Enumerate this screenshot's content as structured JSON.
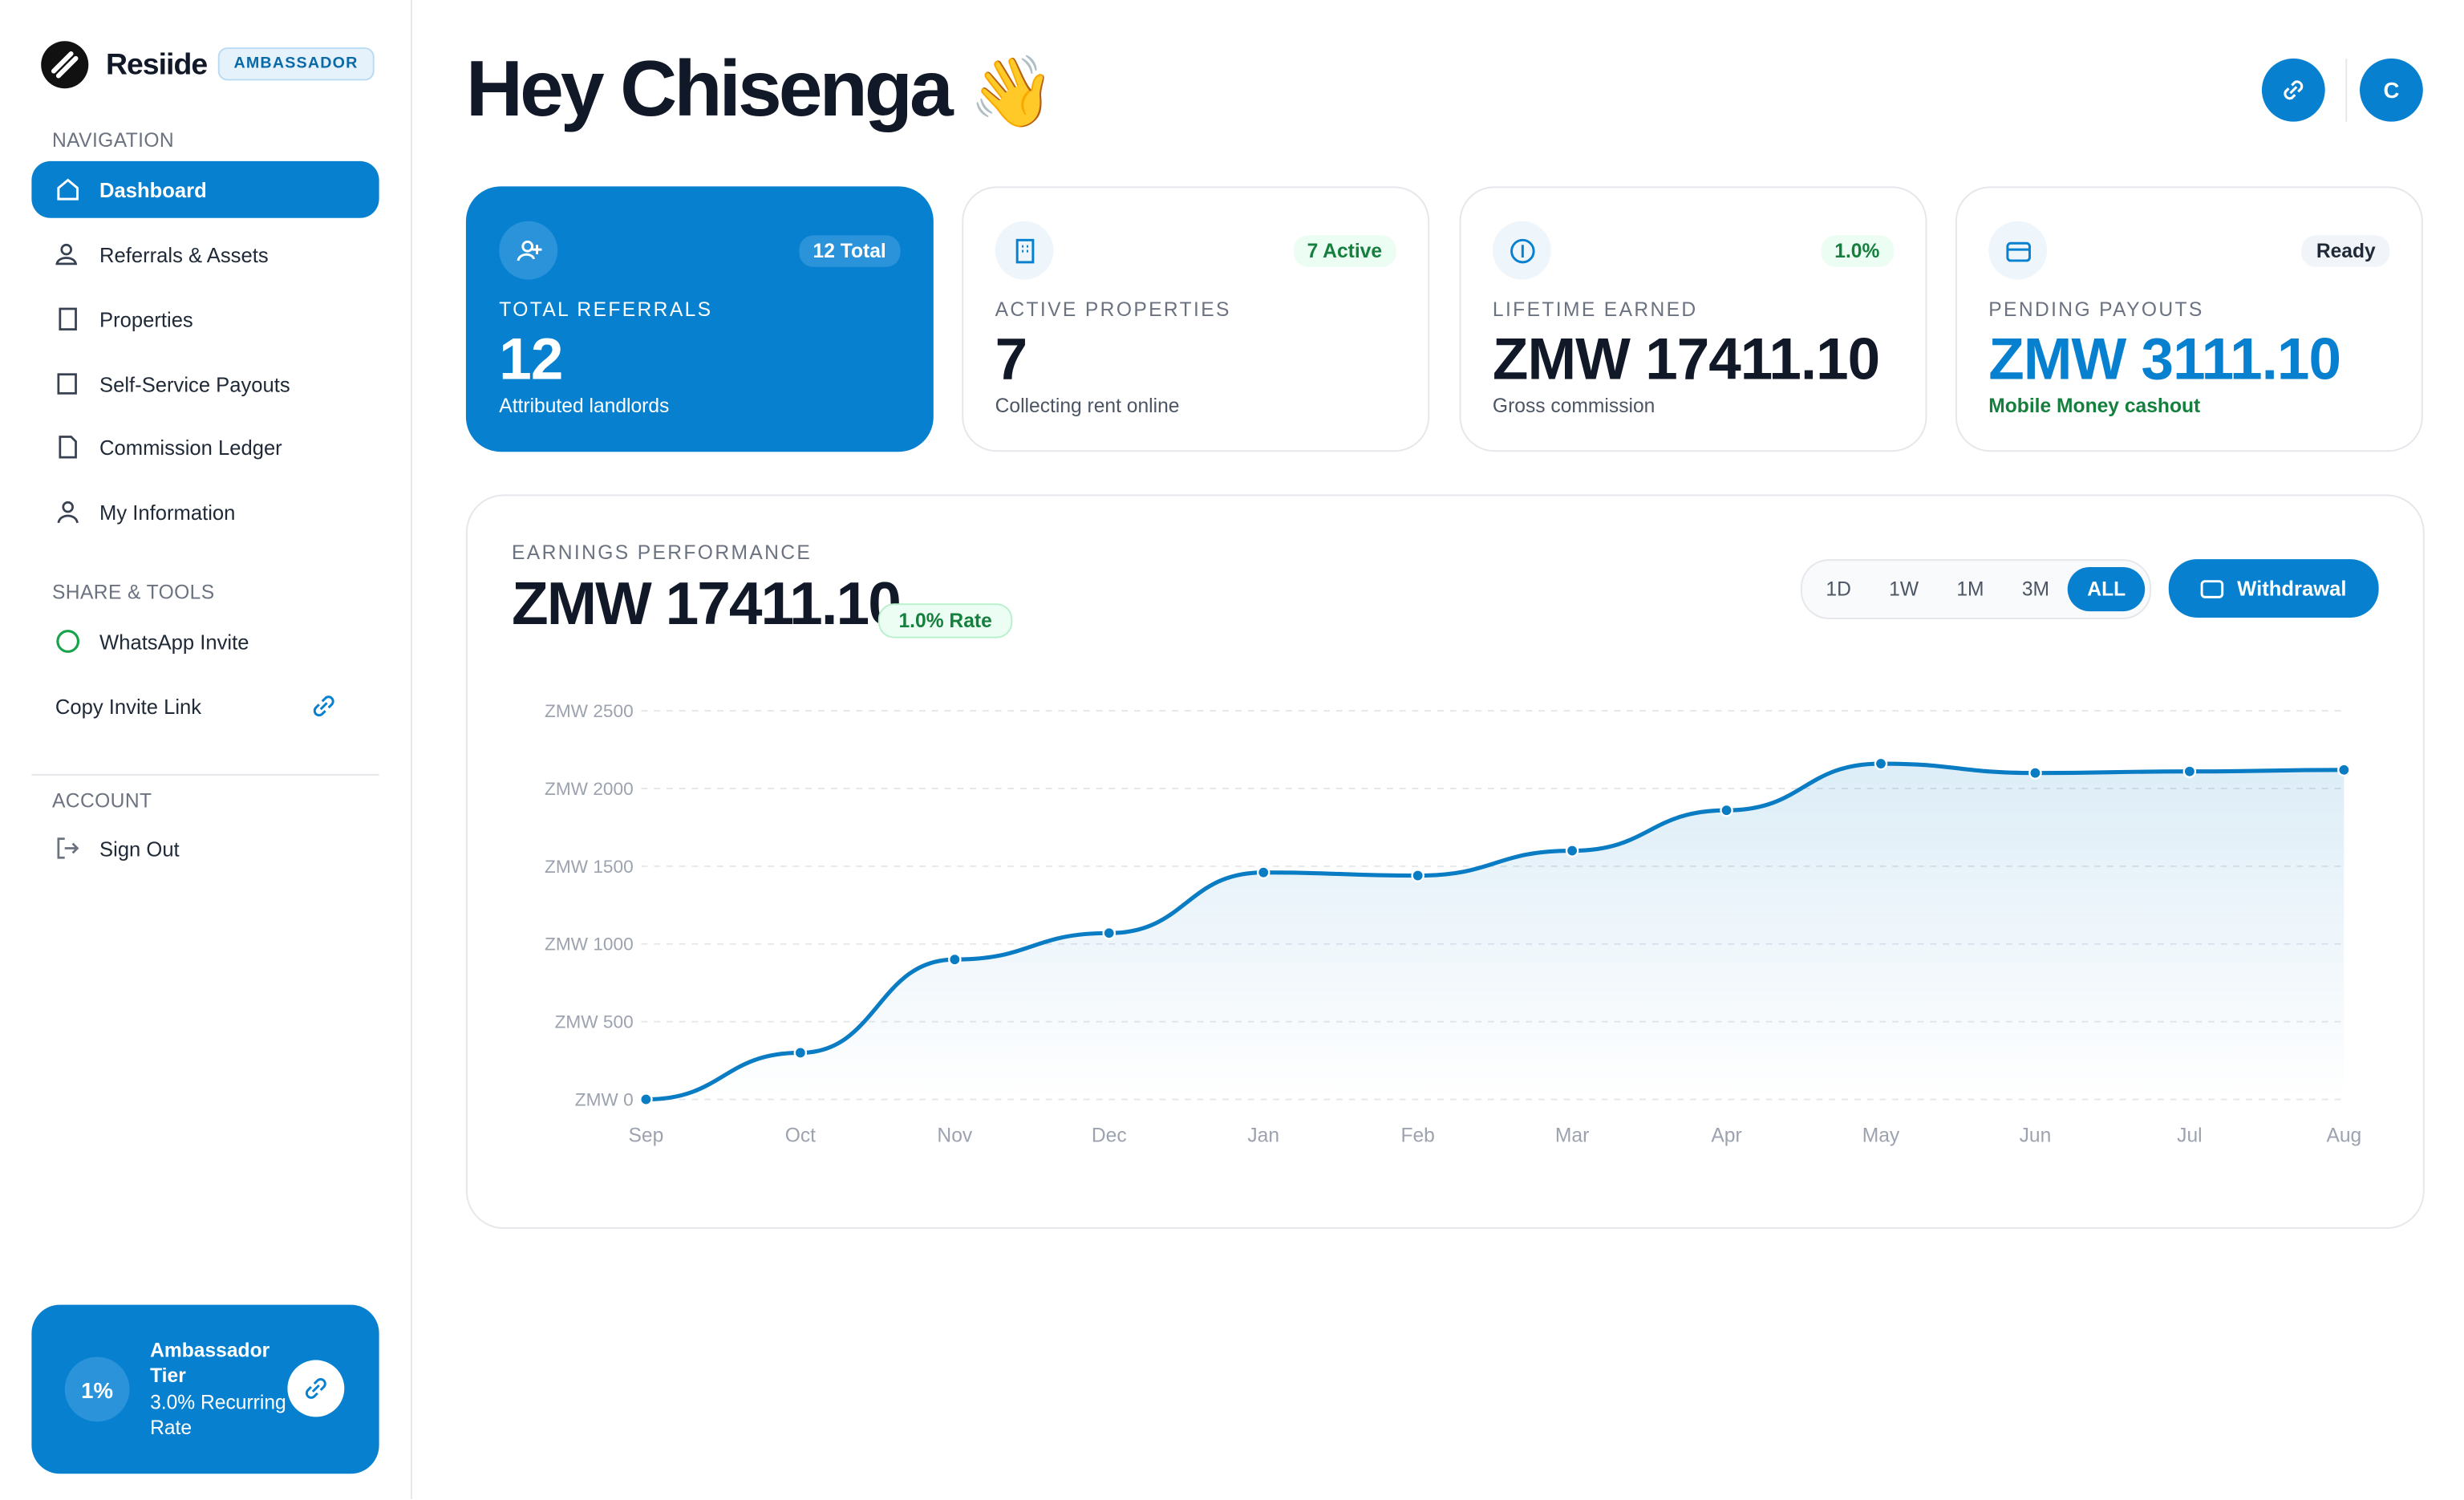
{
  "brand": {
    "name": "Resiide",
    "badge": "AMBASSADOR"
  },
  "sidebar": {
    "sections": [
      {
        "title": "NAVIGATION",
        "items": [
          "Dashboard",
          "Referrals & Assets",
          "Properties",
          "Self-Service Payouts",
          "Commission Ledger",
          "My Information"
        ]
      },
      {
        "title": "SHARE & TOOLS",
        "items": [
          "WhatsApp Invite",
          "Copy Invite Link"
        ]
      },
      {
        "title": "ACCOUNT",
        "items": [
          "Sign Out"
        ]
      }
    ],
    "tier": {
      "badge": "1%",
      "title": "Ambassador Tier",
      "subtitle": "3.0% Recurring Rate"
    }
  },
  "header": {
    "greeting": "Hey Chisenga",
    "emoji": "👋",
    "avatar": "C"
  },
  "cards": [
    {
      "badge": "12 Total",
      "label": "TOTAL REFERRALS",
      "value": "12",
      "note": "Attributed landlords"
    },
    {
      "badge": "7 Active",
      "label": "ACTIVE PROPERTIES",
      "value": "7",
      "note": "Collecting rent online"
    },
    {
      "badge": "1.0%",
      "label": "LIFETIME EARNED",
      "value": "ZMW 17411.10",
      "note": "Gross commission"
    },
    {
      "badge": "Ready",
      "label": "PENDING PAYOUTS",
      "value": "ZMW 3111.10",
      "note": "Mobile Money cashout"
    }
  ],
  "chart_data": {
    "type": "line",
    "label": "EARNINGS PERFORMANCE",
    "total": "ZMW 17411.10",
    "rate": "1.0% Rate",
    "ranges": [
      "1D",
      "1W",
      "1M",
      "3M",
      "ALL"
    ],
    "action": "Withdrawal",
    "categories": [
      "Sep",
      "Oct",
      "Nov",
      "Dec",
      "Jan",
      "Feb",
      "Mar",
      "Apr",
      "May",
      "Jun",
      "Jul",
      "Aug"
    ],
    "values": [
      0,
      300,
      900,
      1070,
      1460,
      1440,
      1600,
      1860,
      2160,
      2100,
      2110,
      2120
    ],
    "color": "#0a7cc4",
    "ylim": [
      0,
      2500
    ],
    "yticks": [
      {
        "value": 0,
        "label": "ZMW 0"
      },
      {
        "value": 500,
        "label": "ZMW 500"
      },
      {
        "value": 1000,
        "label": "ZMW 1000"
      },
      {
        "value": 1500,
        "label": "ZMW 1500"
      },
      {
        "value": 2000,
        "label": "ZMW 2000"
      },
      {
        "value": 2500,
        "label": "ZMW 2500"
      }
    ],
    "grid": true
  }
}
